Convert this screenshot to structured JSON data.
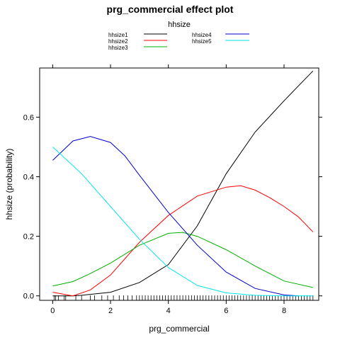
{
  "chart_data": {
    "type": "line",
    "title": "prg_commercial effect plot",
    "xlabel": "prg_commercial",
    "ylabel": "hhsize (probability)",
    "xlim": [
      -0.45,
      9.2
    ],
    "ylim": [
      -0.015,
      0.765
    ],
    "xticks": [
      "0",
      "2",
      "4",
      "6",
      "8"
    ],
    "yticks": [
      "0.0",
      "0.2",
      "0.4",
      "0.6"
    ],
    "legend": {
      "title": "hhsize",
      "placement": "top",
      "entries": [
        {
          "name": "hhsize1",
          "color": "#000000"
        },
        {
          "name": "hhsize2",
          "color": "#ff0000"
        },
        {
          "name": "hhsize3",
          "color": "#00b000"
        },
        {
          "name": "hhsize4",
          "color": "#0000cc"
        },
        {
          "name": "hhsize5",
          "color": "#00e5ee"
        }
      ]
    },
    "series": [
      {
        "name": "hhsize1",
        "color": "#000000",
        "x": [
          0,
          0.7,
          1,
          2,
          3,
          4,
          5,
          6,
          7,
          8,
          8.5,
          9
        ],
        "y": [
          0.0,
          0.0,
          0.002,
          0.012,
          0.045,
          0.105,
          0.235,
          0.41,
          0.55,
          0.655,
          0.705,
          0.755
        ]
      },
      {
        "name": "hhsize2",
        "color": "#ff0000",
        "x": [
          0,
          0.7,
          1.3,
          2,
          3,
          4,
          5,
          6,
          6.5,
          7,
          7.5,
          8,
          8.5,
          9
        ],
        "y": [
          0.012,
          0.0,
          0.02,
          0.07,
          0.18,
          0.27,
          0.335,
          0.365,
          0.37,
          0.355,
          0.33,
          0.3,
          0.265,
          0.215
        ]
      },
      {
        "name": "hhsize3",
        "color": "#00b000",
        "x": [
          0,
          0.7,
          1.3,
          2,
          3,
          4,
          4.5,
          5,
          6,
          7,
          8,
          9
        ],
        "y": [
          0.033,
          0.048,
          0.075,
          0.11,
          0.17,
          0.21,
          0.213,
          0.2,
          0.155,
          0.1,
          0.05,
          0.028
        ]
      },
      {
        "name": "hhsize4",
        "color": "#0000cc",
        "x": [
          0,
          0.7,
          1.3,
          2,
          2.5,
          3,
          4,
          5,
          6,
          7,
          8,
          8.5
        ],
        "y": [
          0.455,
          0.52,
          0.535,
          0.515,
          0.47,
          0.405,
          0.28,
          0.17,
          0.08,
          0.025,
          0.003,
          0.0
        ]
      },
      {
        "name": "hhsize5",
        "color": "#00e5ee",
        "x": [
          0,
          1,
          2,
          3,
          4,
          5,
          6,
          7,
          8,
          9
        ],
        "y": [
          0.5,
          0.41,
          0.3,
          0.19,
          0.095,
          0.035,
          0.01,
          0.002,
          0.0,
          0.0
        ]
      }
    ],
    "rug": [
      0.05,
      0.1,
      0.2,
      0.4,
      0.45,
      0.8,
      1.0,
      1.3,
      1.45,
      1.7,
      1.9,
      2.1,
      2.3,
      2.45,
      2.6,
      2.75,
      2.9,
      3.0,
      3.1,
      3.2,
      3.3,
      3.4,
      3.5,
      3.6,
      3.7,
      3.8,
      3.9,
      4.0,
      4.1,
      4.2,
      4.3,
      4.4,
      4.5,
      4.6,
      4.7,
      4.8,
      4.9,
      5.0,
      5.1,
      5.2,
      5.3,
      5.4,
      5.5,
      5.6,
      5.7,
      5.8,
      5.9,
      6.0,
      6.1,
      6.2,
      6.3,
      6.4,
      6.5,
      6.6,
      6.7,
      6.8,
      6.9,
      7.0,
      7.1,
      7.2,
      7.3,
      7.4,
      7.5,
      7.6,
      7.7,
      7.8,
      7.9,
      8.0,
      8.1,
      8.2,
      8.3,
      8.4,
      8.5,
      8.6,
      8.7,
      8.8,
      8.9,
      9.0
    ]
  }
}
